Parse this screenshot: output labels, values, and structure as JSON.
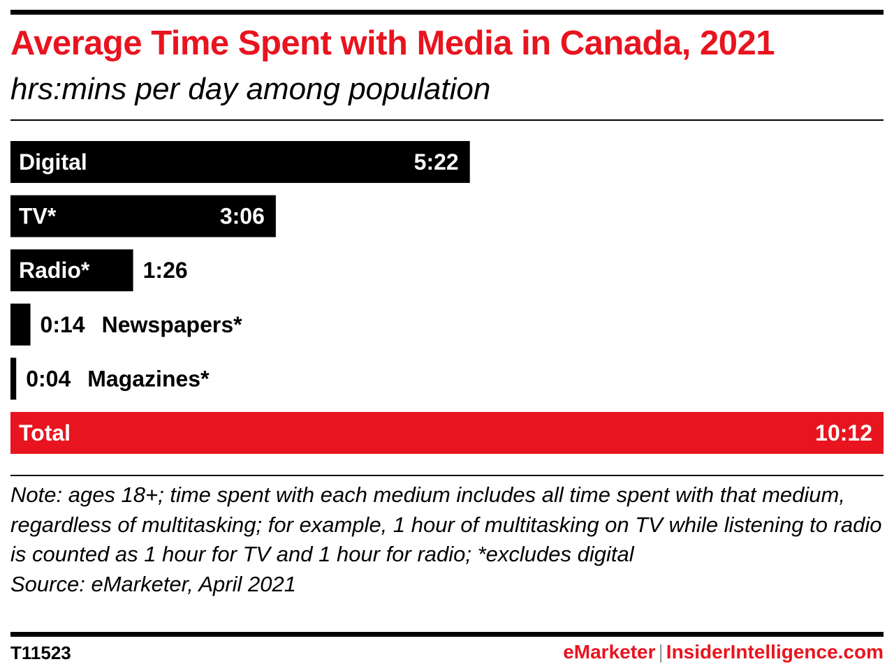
{
  "header": {
    "title": "Average Time Spent with Media in Canada, 2021",
    "subtitle": "hrs:mins per day among population"
  },
  "chart_data": {
    "type": "bar",
    "orientation": "horizontal",
    "categories": [
      "Digital",
      "TV*",
      "Radio*",
      "Newspapers*",
      "Magazines*",
      "Total"
    ],
    "values": [
      5.367,
      3.1,
      1.433,
      0.233,
      0.067,
      10.2
    ],
    "value_labels": [
      "5:22",
      "3:06",
      "1:26",
      "0:14",
      "0:04",
      "10:12"
    ],
    "unit": "hrs:mins",
    "bar_colors": [
      "#000000",
      "#000000",
      "#000000",
      "#000000",
      "#000000",
      "#e8141f"
    ],
    "highlight_color": "#e8141f",
    "xlim": [
      0,
      10.2
    ],
    "grid": false,
    "legend": "none"
  },
  "footer": {
    "note": "Note: ages 18+; time spent with each medium includes all time spent with that medium, regardless of multitasking; for example, 1 hour of multitasking on TV while listening to radio is counted as 1 hour for TV and 1 hour for radio; *excludes digital",
    "source": "Source: eMarketer, April 2021",
    "chart_id": "T11523",
    "brand_left": "eMarketer",
    "brand_separator": "|",
    "brand_right": "InsiderIntelligence.com"
  }
}
